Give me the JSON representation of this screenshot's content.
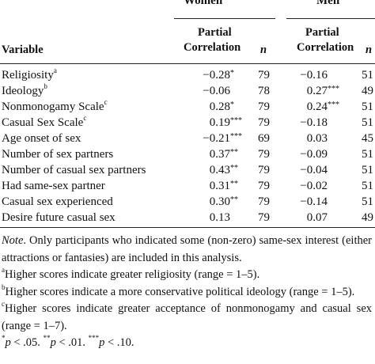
{
  "header": {
    "group_women": "Women",
    "group_men": "Men",
    "variable_label": "Variable",
    "partial_line1": "Partial",
    "partial_line2": "Correlation",
    "n_label": "n"
  },
  "rows": [
    {
      "variable": "Religiosity",
      "sup": "a",
      "w_corr": "−0.28",
      "w_sig": "*",
      "w_n": "79",
      "m_corr": "−0.16",
      "m_sig": "",
      "m_n": "51"
    },
    {
      "variable": "Ideology",
      "sup": "b",
      "w_corr": "−0.06",
      "w_sig": "",
      "w_n": "78",
      "m_corr": "0.27",
      "m_sig": "***",
      "m_n": "49"
    },
    {
      "variable": "Nonmonogamy Scale",
      "sup": "c",
      "w_corr": "0.28",
      "w_sig": "*",
      "w_n": "79",
      "m_corr": "0.24",
      "m_sig": "***",
      "m_n": "51"
    },
    {
      "variable": "Casual Sex Scale",
      "sup": "c",
      "w_corr": "0.19",
      "w_sig": "***",
      "w_n": "79",
      "m_corr": "−0.18",
      "m_sig": "",
      "m_n": "51"
    },
    {
      "variable": "Age onset of sex",
      "sup": "",
      "w_corr": "−0.21",
      "w_sig": "***",
      "w_n": "69",
      "m_corr": "0.03",
      "m_sig": "",
      "m_n": "45"
    },
    {
      "variable": "Number of sex partners",
      "sup": "",
      "w_corr": "0.37",
      "w_sig": "**",
      "w_n": "79",
      "m_corr": "−0.09",
      "m_sig": "",
      "m_n": "51"
    },
    {
      "variable": "Number of casual sex partners",
      "sup": "",
      "w_corr": "0.43",
      "w_sig": "**",
      "w_n": "79",
      "m_corr": "−0.04",
      "m_sig": "",
      "m_n": "51"
    },
    {
      "variable": "Had same-sex partner",
      "sup": "",
      "w_corr": "0.31",
      "w_sig": "**",
      "w_n": "79",
      "m_corr": "−0.02",
      "m_sig": "",
      "m_n": "51"
    },
    {
      "variable": "Casual sex experienced",
      "sup": "",
      "w_corr": "0.30",
      "w_sig": "**",
      "w_n": "79",
      "m_corr": "−0.14",
      "m_sig": "",
      "m_n": "51"
    },
    {
      "variable": "Desire future casual sex",
      "sup": "",
      "w_corr": "0.13",
      "w_sig": "",
      "w_n": "79",
      "m_corr": "0.07",
      "m_sig": "",
      "m_n": "49"
    }
  ],
  "notes": {
    "note_label": "Note",
    "note_text": ". Only participants who indicated some (non-zero) same-sex interest (either attractions or fantasies) are included in this analysis.",
    "a_sup": "a",
    "a_text": "Higher scores indicate greater religiosity (range = 1–5).",
    "b_sup": "b",
    "b_text": "Higher scores indicate a more conservative political ideology (range = 1–5).",
    "c_sup": "c",
    "c_text": "Higher scores indicate greater acceptance of nonmonogamy and casual sex (range = 1–7).",
    "p1_sym": "*",
    "p1_p": "p",
    "p1_val": " < .05. ",
    "p2_sym": "**",
    "p2_p": "p",
    "p2_val": " < .01. ",
    "p3_sym": "***",
    "p3_p": "p",
    "p3_val": " < .10."
  }
}
